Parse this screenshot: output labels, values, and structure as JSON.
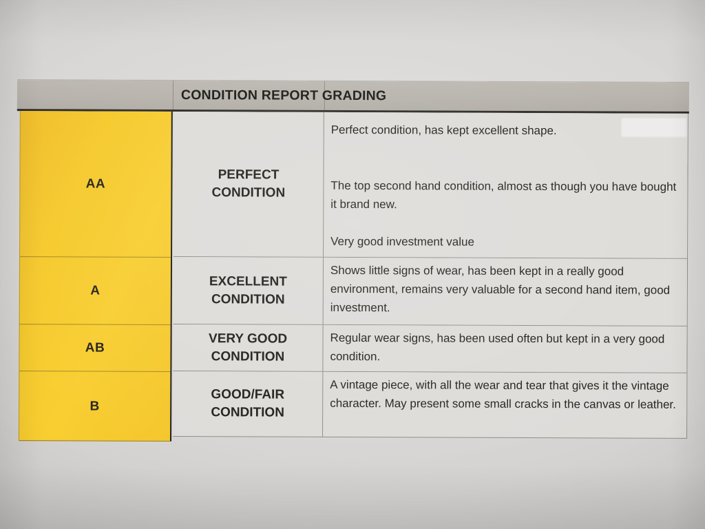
{
  "table": {
    "header": "CONDITION REPORT GRADING",
    "rows": [
      {
        "grade": "AA",
        "label": "PERFECT CONDITION",
        "description_paragraphs": [
          "Perfect condition, has kept excellent shape.",
          "The top second hand condition, almost as though you have bought it brand new.",
          "Very good investment value"
        ]
      },
      {
        "grade": "A",
        "label": "EXCELLENT CONDITION",
        "description_paragraphs": [
          "Shows little signs of wear, has been kept in a really good environment, remains very valuable for a second hand item, good investment."
        ]
      },
      {
        "grade": "AB",
        "label": "VERY GOOD CONDITION",
        "description_paragraphs": [
          "Regular wear signs, has been used often but kept in a very good condition."
        ]
      },
      {
        "grade": "B",
        "label": "GOOD/FAIR CONDITION",
        "description_paragraphs": [
          "A vintage piece, with all the wear and tear that gives it the vintage character. May present some small cracks in the canvas or leather."
        ]
      }
    ],
    "colors": {
      "grade_column_bg": "#f6c92b",
      "header_bg": "#b7b3ac",
      "cell_bg": "#dedcd9",
      "text": "#26241f"
    }
  }
}
